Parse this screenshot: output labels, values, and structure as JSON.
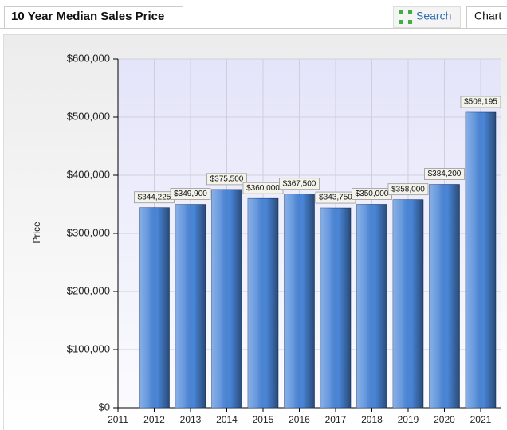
{
  "header": {
    "title": "10 Year Median Sales Price",
    "search": "Search",
    "chart_tab": "Chart"
  },
  "chart_data": {
    "type": "bar",
    "y_label": "Price",
    "x": [
      2012,
      2013,
      2014,
      2015,
      2016,
      2017,
      2018,
      2019,
      2020,
      2021
    ],
    "values": [
      344225,
      349900,
      375500,
      360000,
      367500,
      343750,
      350000,
      358000,
      384200,
      508195
    ],
    "value_labels": [
      "$344,225",
      "$349,900",
      "$375,500",
      "$360,000",
      "$367,500",
      "$343,750",
      "$350,000",
      "$358,000",
      "$384,200",
      "$508,195"
    ],
    "color": "#4a86d8",
    "xlim": [
      2011,
      2021.55
    ],
    "xticks": [
      2011,
      2012,
      2013,
      2014,
      2015,
      2016,
      2017,
      2018,
      2019,
      2020,
      2021
    ],
    "ylim": [
      0,
      600000
    ],
    "yticks": [
      {
        "value": 0,
        "label": "$0"
      },
      {
        "value": 100000,
        "label": "$100,000"
      },
      {
        "value": 200000,
        "label": "$200,000"
      },
      {
        "value": 300000,
        "label": "$300,000"
      },
      {
        "value": 400000,
        "label": "$400,000"
      },
      {
        "value": 500000,
        "label": "$500,000"
      },
      {
        "value": 600000,
        "label": "$600,000"
      }
    ],
    "grid": true
  }
}
